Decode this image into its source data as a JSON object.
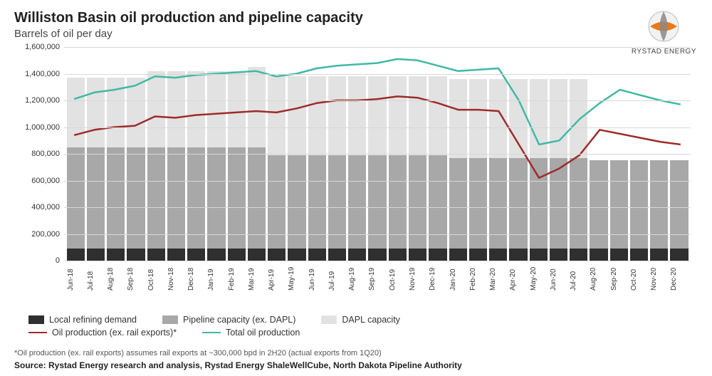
{
  "title": "Williston Basin oil production and pipeline capacity",
  "subtitle": "Barrels of oil per day",
  "logo_text": "RYSTAD ENERGY",
  "footnote": "*Oil production (ex. rail exports) assumes rail exports at ~300,000 bpd in 2H20 (actual exports from 1Q20)",
  "source": "Source: Rystad Energy research and analysis, Rystad Energy ShaleWellCube, North Dakota Pipeline Authority",
  "chart": {
    "type": "stacked-bar-with-lines",
    "ymin": 0,
    "ymax": 1600000,
    "ytick_step": 200000,
    "grid_color": "#d8d8d8",
    "background_color": "#ffffff",
    "categories": [
      "Jun-18",
      "Jul-18",
      "Aug-18",
      "Sep-18",
      "Oct-18",
      "Nov-18",
      "Dec-18",
      "Jan-19",
      "Feb-19",
      "Mar-19",
      "Apr-19",
      "May-19",
      "Jun-19",
      "Jul-19",
      "Aug-19",
      "Sep-19",
      "Oct-19",
      "Nov-19",
      "Dec-19",
      "Jan-20",
      "Feb-20",
      "Mar-20",
      "Apr-20",
      "May-20",
      "Jun-20",
      "Jul-20",
      "Aug-20",
      "Sep-20",
      "Oct-20",
      "Nov-20",
      "Dec-20"
    ],
    "bar_series": [
      {
        "name": "Local refining demand",
        "color": "#2f2f2f",
        "values": [
          90000,
          90000,
          90000,
          90000,
          90000,
          90000,
          90000,
          90000,
          90000,
          90000,
          90000,
          90000,
          90000,
          90000,
          90000,
          90000,
          90000,
          90000,
          90000,
          90000,
          90000,
          90000,
          90000,
          90000,
          90000,
          90000,
          90000,
          90000,
          90000,
          90000,
          90000
        ]
      },
      {
        "name": "Pipeline capacity (ex. DAPL)",
        "color": "#a8a8a8",
        "values": [
          760000,
          760000,
          760000,
          760000,
          760000,
          760000,
          760000,
          760000,
          760000,
          760000,
          700000,
          700000,
          700000,
          700000,
          700000,
          700000,
          700000,
          700000,
          700000,
          680000,
          680000,
          680000,
          680000,
          680000,
          680000,
          680000,
          660000,
          660000,
          660000,
          660000,
          660000
        ]
      },
      {
        "name": "DAPL capacity",
        "color": "#e2e2e2",
        "values": [
          520000,
          520000,
          520000,
          520000,
          570000,
          570000,
          570000,
          570000,
          570000,
          600000,
          590000,
          590000,
          590000,
          590000,
          590000,
          590000,
          590000,
          590000,
          590000,
          590000,
          590000,
          590000,
          590000,
          590000,
          590000,
          590000,
          0,
          0,
          0,
          0,
          0
        ]
      }
    ],
    "line_series": [
      {
        "name": "Oil production (ex. rail exports)*",
        "color": "#9e2b2b",
        "width": 2.5,
        "values": [
          940000,
          980000,
          1000000,
          1010000,
          1080000,
          1070000,
          1090000,
          1100000,
          1110000,
          1120000,
          1110000,
          1140000,
          1180000,
          1200000,
          1200000,
          1210000,
          1230000,
          1220000,
          1180000,
          1130000,
          1130000,
          1120000,
          870000,
          620000,
          690000,
          790000,
          980000,
          950000,
          920000,
          890000,
          870000
        ]
      },
      {
        "name": "Total oil production",
        "color": "#3fb9a4",
        "width": 2.5,
        "values": [
          1210000,
          1260000,
          1280000,
          1310000,
          1380000,
          1370000,
          1390000,
          1400000,
          1410000,
          1420000,
          1380000,
          1400000,
          1440000,
          1460000,
          1470000,
          1480000,
          1510000,
          1500000,
          1460000,
          1420000,
          1430000,
          1440000,
          1200000,
          870000,
          900000,
          1060000,
          1180000,
          1280000,
          1240000,
          1200000,
          1170000
        ]
      }
    ],
    "legend": {
      "row1": [
        "Local refining demand",
        "Pipeline capacity (ex. DAPL)",
        "DAPL capacity"
      ],
      "row2": [
        "Oil production (ex. rail exports)*",
        "Total oil production"
      ]
    },
    "label_fontsize": 11,
    "title_fontsize": 20
  }
}
